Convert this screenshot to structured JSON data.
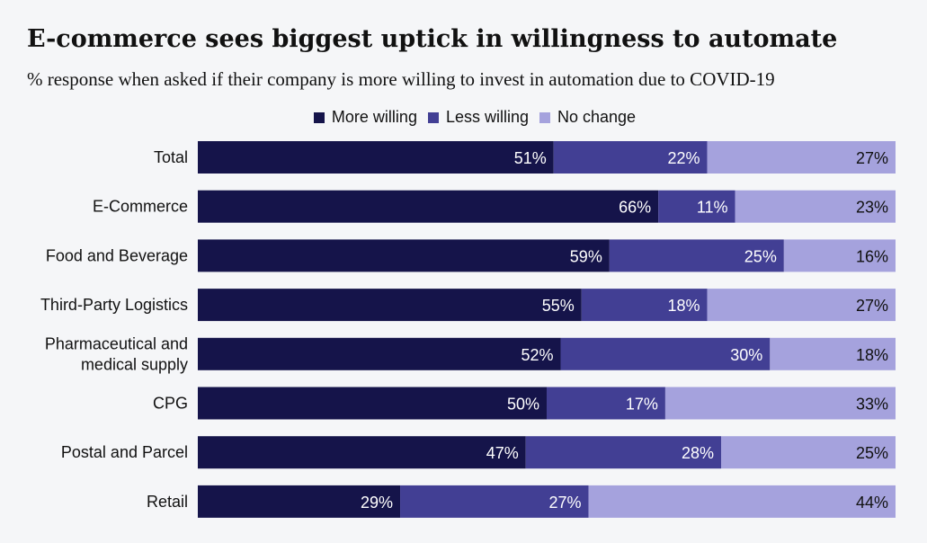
{
  "chart_data": {
    "type": "bar",
    "orientation": "horizontal",
    "stacked": true,
    "title": "E-commerce sees biggest uptick in willingness to automate",
    "subtitle": "% response when asked if their company is more willing to invest in automation due to COVID-19",
    "categories": [
      "Total",
      "E-Commerce",
      "Food and Beverage",
      "Third-Party Logistics",
      "Pharmaceutical and medical supply",
      "CPG",
      "Postal and Parcel",
      "Retail"
    ],
    "category_lines": [
      [
        "Total"
      ],
      [
        "E-Commerce"
      ],
      [
        "Food and Beverage"
      ],
      [
        "Third-Party Logistics"
      ],
      [
        "Pharmaceutical and",
        "medical supply"
      ],
      [
        "CPG"
      ],
      [
        "Postal and Parcel"
      ],
      [
        "Retail"
      ]
    ],
    "series": [
      {
        "name": "More willing",
        "color": "#15144a",
        "label_color": "#ffffff",
        "values": [
          51,
          66,
          59,
          55,
          52,
          50,
          47,
          29
        ]
      },
      {
        "name": "Less willing",
        "color": "#423f94",
        "label_color": "#ffffff",
        "values": [
          22,
          11,
          25,
          18,
          30,
          17,
          28,
          27
        ]
      },
      {
        "name": "No change",
        "color": "#a5a2dd",
        "label_color": "#111111",
        "values": [
          27,
          23,
          16,
          27,
          18,
          33,
          25,
          44
        ]
      }
    ],
    "value_suffix": "%",
    "xlim": [
      0,
      100
    ],
    "legend_position": "top-center",
    "grid": false
  }
}
